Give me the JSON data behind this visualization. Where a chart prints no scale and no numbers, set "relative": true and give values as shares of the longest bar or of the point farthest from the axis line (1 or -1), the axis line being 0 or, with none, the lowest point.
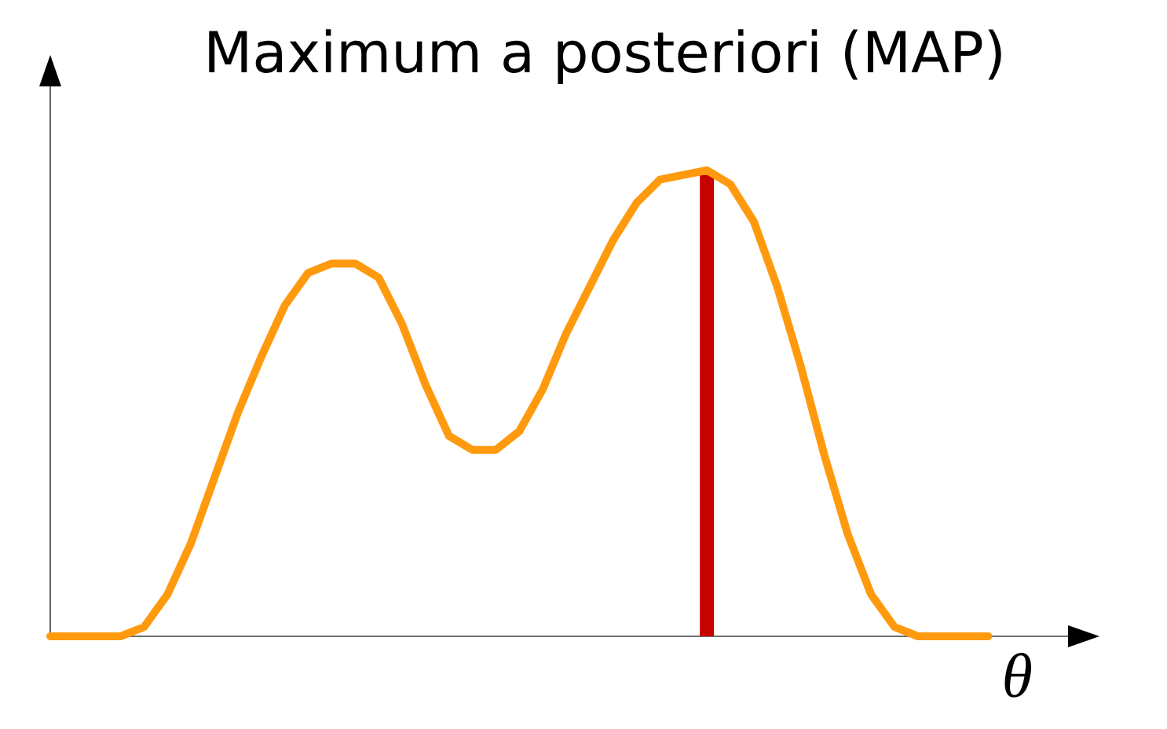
{
  "chart_data": {
    "type": "line",
    "title": "Maximum a posteriori (MAP)",
    "xlabel": "θ",
    "relative": true,
    "categories": [
      null,
      null,
      null,
      null,
      null,
      null,
      null,
      null,
      null,
      null,
      null,
      null,
      null,
      null,
      null,
      null,
      null,
      null,
      null,
      null,
      null,
      null,
      null,
      null,
      null,
      null,
      null,
      null,
      null,
      null,
      null,
      null,
      null,
      null,
      null,
      null,
      null,
      null,
      null,
      null,
      null
    ],
    "series": [
      {
        "color": "#ff9a0e",
        "values": [
          0,
          0,
          0,
          0,
          0.02,
          0.09,
          0.2,
          0.34,
          0.48,
          0.6,
          0.71,
          0.78,
          0.8,
          0.8,
          0.77,
          0.67,
          0.54,
          0.43,
          0.4,
          0.4,
          0.44,
          0.53,
          0.65,
          0.75,
          0.85,
          0.93,
          0.98,
          0.99,
          1,
          0.97,
          0.89,
          0.75,
          0.58,
          0.39,
          0.22,
          0.09,
          0.02,
          0,
          0,
          0,
          0
        ]
      }
    ]
  }
}
